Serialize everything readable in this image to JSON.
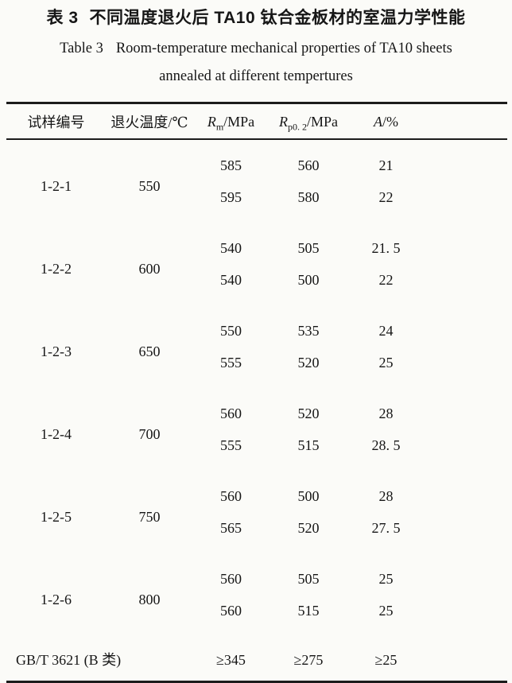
{
  "page": {
    "background": "#fbfbf8",
    "text_color": "#161616",
    "rule_color": "#1c1c1c"
  },
  "title": {
    "zh_label": "表 3",
    "zh_text": "不同温度退火后 TA10 钛合金板材的室温力学性能",
    "en_label": "Table 3",
    "en_line1": "Room-temperature mechanical properties of TA10 sheets",
    "en_line2": "annealed at different tempertures"
  },
  "table": {
    "header": {
      "sample": "试样编号",
      "temperature": "退火温度/℃",
      "rm": {
        "base": "R",
        "sub": "m",
        "unit": "/MPa"
      },
      "rp02": {
        "base": "R",
        "sub": "p0. 2",
        "unit": "/MPa"
      },
      "a": {
        "base": "A",
        "unit": "/%"
      }
    },
    "groups": [
      {
        "sample": "1-2-1",
        "temperature": "550",
        "rows": [
          {
            "rm": "585",
            "rp02": "560",
            "a": "21"
          },
          {
            "rm": "595",
            "rp02": "580",
            "a": "22"
          }
        ]
      },
      {
        "sample": "1-2-2",
        "temperature": "600",
        "rows": [
          {
            "rm": "540",
            "rp02": "505",
            "a": "21. 5"
          },
          {
            "rm": "540",
            "rp02": "500",
            "a": "22"
          }
        ]
      },
      {
        "sample": "1-2-3",
        "temperature": "650",
        "rows": [
          {
            "rm": "550",
            "rp02": "535",
            "a": "24"
          },
          {
            "rm": "555",
            "rp02": "520",
            "a": "25"
          }
        ]
      },
      {
        "sample": "1-2-4",
        "temperature": "700",
        "rows": [
          {
            "rm": "560",
            "rp02": "520",
            "a": "28"
          },
          {
            "rm": "555",
            "rp02": "515",
            "a": "28. 5"
          }
        ]
      },
      {
        "sample": "1-2-5",
        "temperature": "750",
        "rows": [
          {
            "rm": "560",
            "rp02": "500",
            "a": "28"
          },
          {
            "rm": "565",
            "rp02": "520",
            "a": "27. 5"
          }
        ]
      },
      {
        "sample": "1-2-6",
        "temperature": "800",
        "rows": [
          {
            "rm": "560",
            "rp02": "505",
            "a": "25"
          },
          {
            "rm": "560",
            "rp02": "515",
            "a": "25"
          }
        ]
      }
    ],
    "footer": {
      "label": "GB/T 3621 (B 类)",
      "rm": "≥345",
      "rp02": "≥275",
      "a": "≥25"
    }
  }
}
